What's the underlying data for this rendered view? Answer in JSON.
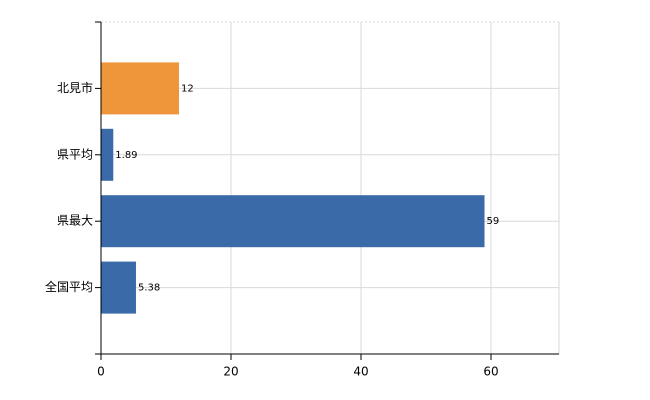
{
  "chart_data": {
    "type": "bar",
    "orientation": "horizontal",
    "categories": [
      "北見市",
      "県平均",
      "県最大",
      "全国平均"
    ],
    "values": [
      12,
      1.89,
      59,
      5.38
    ],
    "colors": [
      "#f0963a",
      "#3a6aa8",
      "#3a6aa8",
      "#3a6aa8"
    ],
    "xlim": [
      0,
      70
    ],
    "xticks": [
      0,
      20,
      40,
      60
    ],
    "grid": true
  }
}
